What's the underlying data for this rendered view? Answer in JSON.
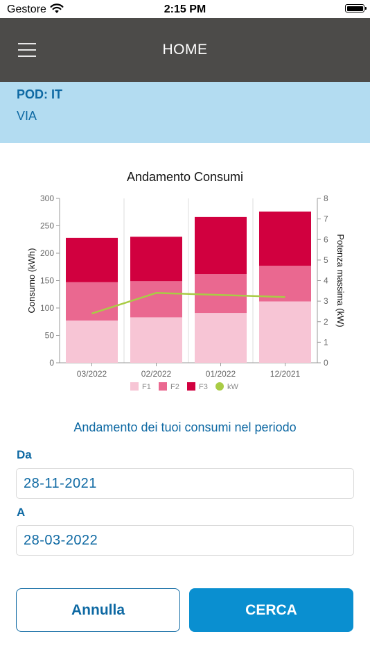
{
  "status_bar": {
    "carrier": "Gestore",
    "time": "2:15 PM"
  },
  "nav": {
    "title": "HOME",
    "menu_icon": "hamburger-menu-icon"
  },
  "pod": {
    "label": "POD: IT",
    "address": "VIA"
  },
  "chart_data": {
    "type": "bar",
    "title": "Andamento Consumi",
    "ylabel": "Consumo (kWh)",
    "y2label": "Potenza massima (kW)",
    "categories": [
      "03/2022",
      "02/2022",
      "01/2022",
      "12/2021"
    ],
    "ylim": [
      0,
      300
    ],
    "y2lim": [
      0,
      8
    ],
    "yticks": [
      0,
      50,
      100,
      150,
      200,
      250,
      300
    ],
    "y2ticks": [
      0,
      1,
      2,
      3,
      4,
      5,
      6,
      7,
      8
    ],
    "stacked": true,
    "series": [
      {
        "name": "F1",
        "values": [
          77,
          83,
          91,
          112
        ],
        "color": "#f7c5d5"
      },
      {
        "name": "F2",
        "values": [
          70,
          66,
          71,
          65
        ],
        "color": "#ea6890"
      },
      {
        "name": "F3",
        "values": [
          81,
          81,
          104,
          99
        ],
        "color": "#d1003f"
      }
    ],
    "line_series": {
      "name": "kW",
      "axis": "right",
      "values": [
        2.4,
        3.4,
        3.3,
        3.2
      ],
      "color": "#a9cc45"
    },
    "legend_position": "bottom",
    "grid": "vertical"
  },
  "period": {
    "title": "Andamento dei tuoi consumi nel periodo",
    "from_label": "Da",
    "from_value": "28-11-2021",
    "to_label": "A",
    "to_value": "28-03-2022"
  },
  "buttons": {
    "cancel": "Annulla",
    "search": "CERCA"
  },
  "colors": {
    "nav_bg": "#4c4b49",
    "band_bg": "#b3dcf1",
    "brand_blue": "#0e69a3",
    "button_blue": "#0a8fd0"
  }
}
